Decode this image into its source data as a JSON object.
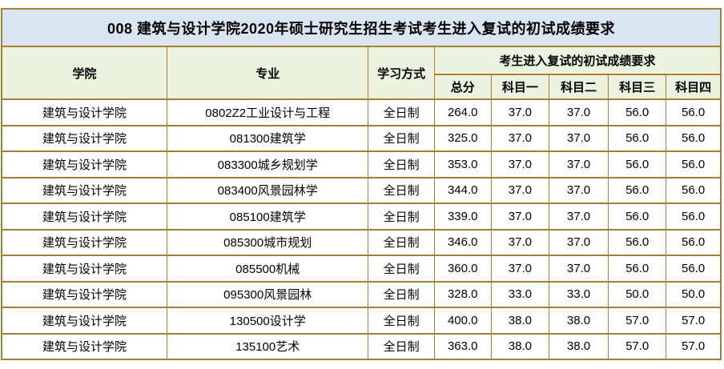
{
  "title": "008 建筑与设计学院2020年硕士研究生招生考试考生进入复试的初试成绩要求",
  "colors": {
    "title_background": "#d9e5f0",
    "header_background": "#edf2df",
    "border": "#a28137",
    "row_background": "#ffffff",
    "text": "#000000"
  },
  "table": {
    "headers": {
      "college": "学院",
      "major": "专业",
      "study_mode": "学习方式",
      "score_group": "考生进入复试的初试成绩要求",
      "sub": [
        "总分",
        "科目一",
        "科目二",
        "科目三",
        "科目四"
      ]
    },
    "rows": [
      {
        "college": "建筑与设计学院",
        "major": "0802Z2工业设计与工程",
        "study_mode": "全日制",
        "scores": [
          "264.0",
          "37.0",
          "37.0",
          "56.0",
          "56.0"
        ]
      },
      {
        "college": "建筑与设计学院",
        "major": "081300建筑学",
        "study_mode": "全日制",
        "scores": [
          "325.0",
          "37.0",
          "37.0",
          "56.0",
          "56.0"
        ]
      },
      {
        "college": "建筑与设计学院",
        "major": "083300城乡规划学",
        "study_mode": "全日制",
        "scores": [
          "353.0",
          "37.0",
          "37.0",
          "56.0",
          "56.0"
        ]
      },
      {
        "college": "建筑与设计学院",
        "major": "083400风景园林学",
        "study_mode": "全日制",
        "scores": [
          "344.0",
          "37.0",
          "37.0",
          "56.0",
          "56.0"
        ]
      },
      {
        "college": "建筑与设计学院",
        "major": "085100建筑学",
        "study_mode": "全日制",
        "scores": [
          "339.0",
          "37.0",
          "37.0",
          "56.0",
          "56.0"
        ]
      },
      {
        "college": "建筑与设计学院",
        "major": "085300城市规划",
        "study_mode": "全日制",
        "scores": [
          "346.0",
          "37.0",
          "37.0",
          "56.0",
          "56.0"
        ]
      },
      {
        "college": "建筑与设计学院",
        "major": "085500机械",
        "study_mode": "全日制",
        "scores": [
          "360.0",
          "37.0",
          "37.0",
          "56.0",
          "56.0"
        ]
      },
      {
        "college": "建筑与设计学院",
        "major": "095300风景园林",
        "study_mode": "全日制",
        "scores": [
          "328.0",
          "33.0",
          "33.0",
          "50.0",
          "50.0"
        ]
      },
      {
        "college": "建筑与设计学院",
        "major": "130500设计学",
        "study_mode": "全日制",
        "scores": [
          "400.0",
          "38.0",
          "38.0",
          "57.0",
          "57.0"
        ]
      },
      {
        "college": "建筑与设计学院",
        "major": "135100艺术",
        "study_mode": "全日制",
        "scores": [
          "363.0",
          "38.0",
          "38.0",
          "57.0",
          "57.0"
        ]
      }
    ]
  }
}
